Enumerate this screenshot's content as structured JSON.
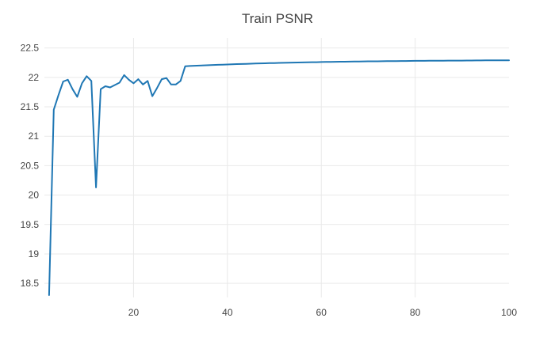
{
  "title": "Train PSNR",
  "colors": {
    "line": "#1f77b4",
    "grid": "#e9e9e9",
    "tick_label": "#444444",
    "title": "#444444",
    "background": "#ffffff"
  },
  "chart_data": {
    "type": "line",
    "title": "Train PSNR",
    "xlabel": "",
    "ylabel": "",
    "grid": true,
    "legend": "none",
    "x_range": [
      1,
      100
    ],
    "y_range": [
      18.26,
      22.67
    ],
    "x_tick_labels": [
      "20",
      "40",
      "60",
      "80",
      "100"
    ],
    "x_tick_values": [
      20,
      40,
      60,
      80,
      100
    ],
    "x_gridline_values": [
      20,
      40,
      60,
      80
    ],
    "y_tick_labels": [
      "18.5",
      "19",
      "19.5",
      "20",
      "20.5",
      "21",
      "21.5",
      "22",
      "22.5"
    ],
    "y_tick_values": [
      18.5,
      19,
      19.5,
      20,
      20.5,
      21,
      21.5,
      22,
      22.5
    ],
    "series": [
      {
        "name": "Train PSNR",
        "x": [
          2,
          3,
          4,
          5,
          6,
          7,
          8,
          9,
          10,
          11,
          12,
          13,
          14,
          15,
          16,
          17,
          18,
          19,
          20,
          21,
          22,
          23,
          24,
          25,
          26,
          27,
          28,
          29,
          30,
          31,
          32,
          33,
          34,
          35,
          36,
          37,
          38,
          39,
          40,
          41,
          42,
          43,
          44,
          45,
          46,
          47,
          48,
          49,
          50,
          51,
          52,
          53,
          54,
          55,
          56,
          57,
          58,
          59,
          60,
          61,
          62,
          63,
          64,
          65,
          66,
          67,
          68,
          69,
          70,
          71,
          72,
          73,
          74,
          75,
          76,
          77,
          78,
          79,
          80,
          81,
          82,
          83,
          84,
          85,
          86,
          87,
          88,
          89,
          90,
          91,
          92,
          93,
          94,
          95,
          96,
          97,
          98,
          99,
          100
        ],
        "y": [
          18.3,
          21.45,
          21.7,
          21.93,
          21.96,
          21.8,
          21.67,
          21.9,
          22.02,
          21.94,
          20.13,
          21.8,
          21.85,
          21.83,
          21.87,
          21.91,
          22.04,
          21.96,
          21.9,
          21.97,
          21.88,
          21.94,
          21.68,
          21.82,
          21.97,
          21.99,
          21.88,
          21.88,
          21.94,
          22.19,
          22.194,
          22.198,
          22.201,
          22.205,
          22.208,
          22.211,
          22.214,
          22.217,
          22.22,
          22.223,
          22.226,
          22.228,
          22.231,
          22.233,
          22.236,
          22.238,
          22.24,
          22.242,
          22.244,
          22.246,
          22.248,
          22.25,
          22.252,
          22.253,
          22.255,
          22.256,
          22.258,
          22.259,
          22.261,
          22.262,
          22.264,
          22.265,
          22.266,
          22.267,
          22.268,
          22.269,
          22.271,
          22.272,
          22.273,
          22.274,
          22.274,
          22.275,
          22.276,
          22.277,
          22.278,
          22.279,
          22.279,
          22.28,
          22.281,
          22.281,
          22.282,
          22.283,
          22.283,
          22.284,
          22.284,
          22.285,
          22.285,
          22.286,
          22.286,
          22.287,
          22.287,
          22.288,
          22.288,
          22.289,
          22.289,
          22.289,
          22.29,
          22.29,
          22.29
        ]
      }
    ]
  }
}
